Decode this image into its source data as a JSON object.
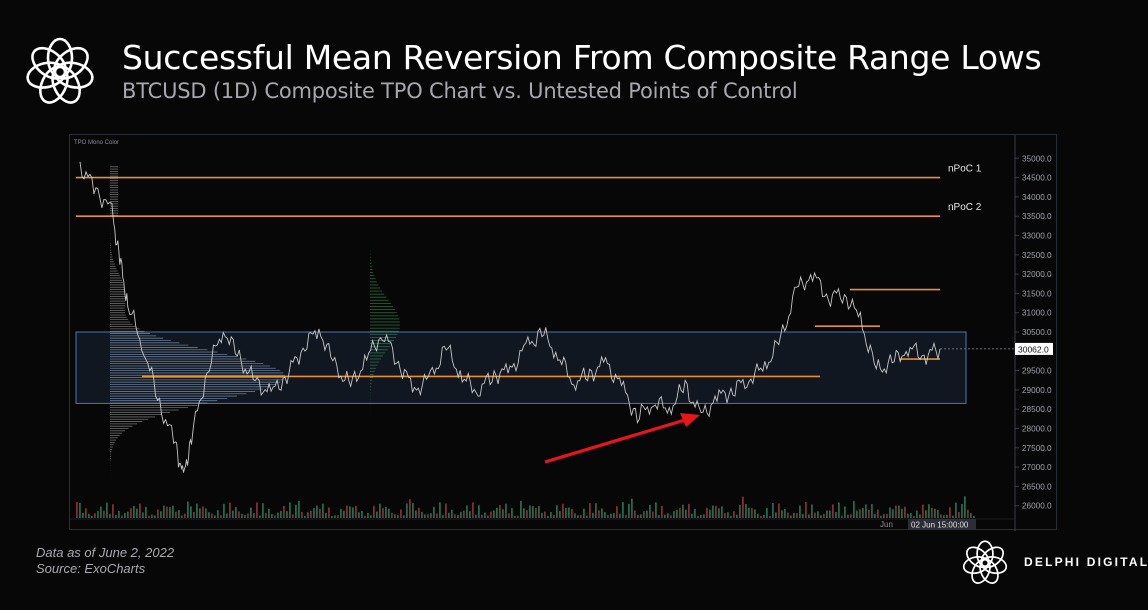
{
  "header": {
    "title": "Successful Mean Reversion From Composite Range Lows",
    "subtitle": "BTCUSD (1D) Composite TPO Chart vs. Untested Points of Control",
    "logo_icon": "flower-logo-icon"
  },
  "footer": {
    "data_note": "Data as of June 2, 2022",
    "source_note": "Source:  ExoCharts",
    "brand_name": "DELPHI DIGITAL",
    "brand_icon": "flower-logo-icon"
  },
  "chart_data": {
    "type": "line",
    "indicator_label": "TPO Mono Color",
    "ylim": [
      25500,
      35500
    ],
    "y_ticks": [
      "35000.0",
      "34500.0",
      "34000.0",
      "33500.0",
      "33000.0",
      "32500.0",
      "32000.0",
      "31500.0",
      "31000.0",
      "30500.0",
      "30000.0",
      "29500.0",
      "29000.0",
      "28500.0",
      "28000.0",
      "27500.0",
      "27000.0",
      "26500.0",
      "26000.0"
    ],
    "y_tick_values": [
      35000,
      34500,
      34000,
      33500,
      33000,
      32500,
      32000,
      31500,
      31000,
      30500,
      30000,
      29500,
      29000,
      28500,
      28000,
      27500,
      27000,
      26500,
      26000
    ],
    "current_price_label": "30062.0",
    "current_price": 30062,
    "x_labels": [
      "Jun"
    ],
    "crosshair_label": "02 Jun 15:00:00",
    "untested_pocs": [
      {
        "name": "nPoC 1",
        "price": 34500
      },
      {
        "name": "nPoC 2",
        "price": 33500
      }
    ],
    "composite_range": {
      "high": 30500,
      "low": 28650,
      "poc": 29350
    },
    "secondary_pocs": [
      {
        "price": 31600
      },
      {
        "price": 30650
      },
      {
        "price": 29800
      }
    ],
    "price_path": [
      [
        0,
        34800
      ],
      [
        2,
        34200
      ],
      [
        4,
        33600
      ],
      [
        5,
        32400
      ],
      [
        6,
        31200
      ],
      [
        8,
        30100
      ],
      [
        10,
        28600
      ],
      [
        12,
        27600
      ],
      [
        13,
        26700
      ],
      [
        14,
        27800
      ],
      [
        16,
        29500
      ],
      [
        18,
        30600
      ],
      [
        20,
        29800
      ],
      [
        22,
        29200
      ],
      [
        24,
        28900
      ],
      [
        26,
        29400
      ],
      [
        28,
        30100
      ],
      [
        30,
        30600
      ],
      [
        32,
        29600
      ],
      [
        34,
        29100
      ],
      [
        36,
        29800
      ],
      [
        38,
        30500
      ],
      [
        40,
        29700
      ],
      [
        42,
        29000
      ],
      [
        44,
        29300
      ],
      [
        46,
        30100
      ],
      [
        48,
        29300
      ],
      [
        50,
        29000
      ],
      [
        52,
        29400
      ],
      [
        54,
        29500
      ],
      [
        56,
        30100
      ],
      [
        58,
        30500
      ],
      [
        60,
        29900
      ],
      [
        62,
        29200
      ],
      [
        64,
        29400
      ],
      [
        66,
        29700
      ],
      [
        68,
        29100
      ],
      [
        70,
        28300
      ],
      [
        72,
        28700
      ],
      [
        74,
        28500
      ],
      [
        76,
        29100
      ],
      [
        78,
        28300
      ],
      [
        80,
        28800
      ],
      [
        82,
        29000
      ],
      [
        84,
        29300
      ],
      [
        86,
        29600
      ],
      [
        88,
        30300
      ],
      [
        90,
        31600
      ],
      [
        92,
        32000
      ],
      [
        94,
        31400
      ],
      [
        96,
        31500
      ],
      [
        98,
        30800
      ],
      [
        100,
        29500
      ],
      [
        102,
        29700
      ],
      [
        104,
        30100
      ],
      [
        106,
        29900
      ],
      [
        108,
        30062
      ]
    ]
  }
}
